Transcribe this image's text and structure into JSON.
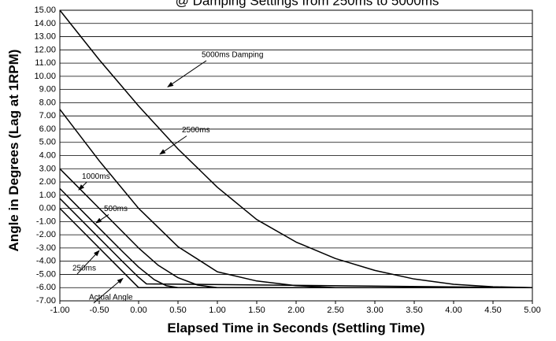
{
  "chart_data": {
    "type": "line",
    "title": "@ Damping Settings from 250ms to 5000ms",
    "xlabel": "Elapsed Time in Seconds (Settling Time)",
    "ylabel": "Angle in Degrees (Lag at 1RPM)",
    "xlim": [
      -1.0,
      5.0
    ],
    "ylim": [
      -7.0,
      15.0
    ],
    "x_ticks": [
      "-1.00",
      "-0.50",
      "0.00",
      "0.50",
      "1.00",
      "1.50",
      "2.00",
      "2.50",
      "3.00",
      "3.50",
      "4.00",
      "4.50",
      "5.00"
    ],
    "y_ticks": [
      "15.00",
      "14.00",
      "13.00",
      "12.00",
      "11.00",
      "10.00",
      "9.00",
      "8.00",
      "7.00",
      "6.00",
      "5.00",
      "4.00",
      "3.00",
      "2.00",
      "1.00",
      "0.00",
      "-1.00",
      "-2.00",
      "-3.00",
      "-4.00",
      "-5.00",
      "-6.00",
      "-7.00"
    ],
    "grid": "horizontal",
    "series": [
      {
        "name": "Actual Angle",
        "x": [
          -1.0,
          0.0,
          5.0
        ],
        "y": [
          0.0,
          -6.0,
          -6.0
        ]
      },
      {
        "name": "250ms",
        "x": [
          -1.0,
          -0.4,
          -0.2,
          0.0,
          0.1,
          5.0
        ],
        "y": [
          0.75,
          -2.85,
          -4.05,
          -5.22,
          -5.72,
          -6.0
        ]
      },
      {
        "name": "500ms",
        "x": [
          -1.0,
          -0.5,
          -0.2,
          0.0,
          0.2,
          0.35,
          0.5,
          5.0
        ],
        "y": [
          1.5,
          -1.5,
          -3.3,
          -4.45,
          -5.4,
          -5.85,
          -6.0,
          -6.0
        ]
      },
      {
        "name": "1000ms",
        "x": [
          -1.0,
          -0.5,
          0.0,
          0.25,
          0.5,
          0.75,
          1.0,
          5.0
        ],
        "y": [
          3.0,
          0.0,
          -3.0,
          -4.31,
          -5.25,
          -5.81,
          -6.0,
          -6.0
        ]
      },
      {
        "name": "2500ms",
        "x": [
          -1.0,
          -0.5,
          0.0,
          0.5,
          1.0,
          1.5,
          2.0,
          2.5,
          5.0
        ],
        "y": [
          7.5,
          3.6,
          0.0,
          -2.9,
          -4.8,
          -5.5,
          -5.85,
          -6.0,
          -6.0
        ]
      },
      {
        "name": "5000ms Damping",
        "x": [
          -1.0,
          -0.5,
          0.0,
          0.5,
          1.0,
          1.5,
          2.0,
          2.5,
          3.0,
          3.5,
          4.0,
          4.5,
          5.0
        ],
        "y": [
          15.0,
          11.25,
          7.75,
          4.5,
          1.6,
          -0.85,
          -2.55,
          -3.8,
          -4.7,
          -5.35,
          -5.75,
          -5.93,
          -6.0
        ]
      }
    ],
    "annotations": [
      {
        "text": "5000ms Damping",
        "label_x": 0.8,
        "label_y": 11.6,
        "arrow_x": 0.37,
        "arrow_y": 9.2
      },
      {
        "text": "2500ms",
        "label_x": 0.55,
        "label_y": 5.9,
        "arrow_x": 0.27,
        "arrow_y": 4.1
      },
      {
        "text": "1000ms",
        "label_x": -0.72,
        "label_y": 2.4,
        "arrow_x": -0.76,
        "arrow_y": 1.4
      },
      {
        "text": "500ms",
        "label_x": -0.44,
        "label_y": -0.05,
        "arrow_x": -0.54,
        "arrow_y": -1.1
      },
      {
        "text": "250ms",
        "label_x": -0.84,
        "label_y": -4.55,
        "arrow_x": -0.5,
        "arrow_y": -3.2
      },
      {
        "text": "Actual Angle",
        "label_x": -0.63,
        "label_y": -6.75,
        "arrow_x": -0.2,
        "arrow_y": -5.3
      }
    ]
  }
}
